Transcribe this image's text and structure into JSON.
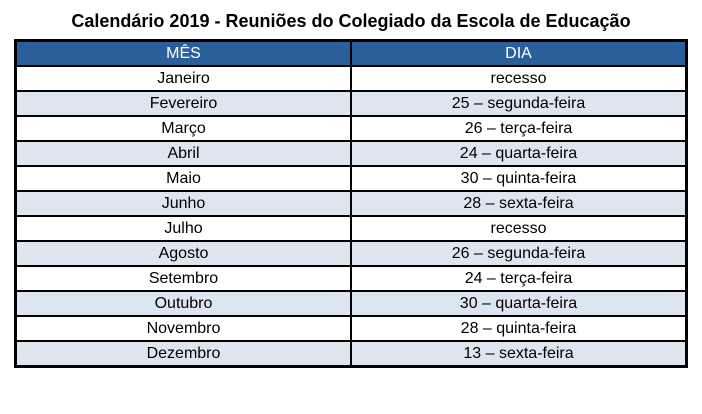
{
  "title": "Calendário 2019 - Reuniões do Colegiado da Escola de Educação",
  "table": {
    "columns": [
      "MÊS",
      "DIA"
    ],
    "rows": [
      [
        "Janeiro",
        "recesso"
      ],
      [
        "Fevereiro",
        "25 – segunda-feira"
      ],
      [
        "Março",
        "26 – terça-feira"
      ],
      [
        "Abril",
        "24 – quarta-feira"
      ],
      [
        "Maio",
        "30 – quinta-feira"
      ],
      [
        "Junho",
        "28 – sexta-feira"
      ],
      [
        "Julho",
        "recesso"
      ],
      [
        "Agosto",
        "26 – segunda-feira"
      ],
      [
        "Setembro",
        "24 – terça-feira"
      ],
      [
        "Outubro",
        "30 – quarta-feira"
      ],
      [
        "Novembro",
        "28 – quinta-feira"
      ],
      [
        "Dezembro",
        "13 – sexta-feira"
      ]
    ]
  },
  "colors": {
    "header_bg": "#2B5F9C",
    "header_text": "#FFFFFF",
    "band_bg": "#DDE5EF",
    "row_bg": "#FFFFFF",
    "border": "#000000",
    "text": "#000000"
  }
}
